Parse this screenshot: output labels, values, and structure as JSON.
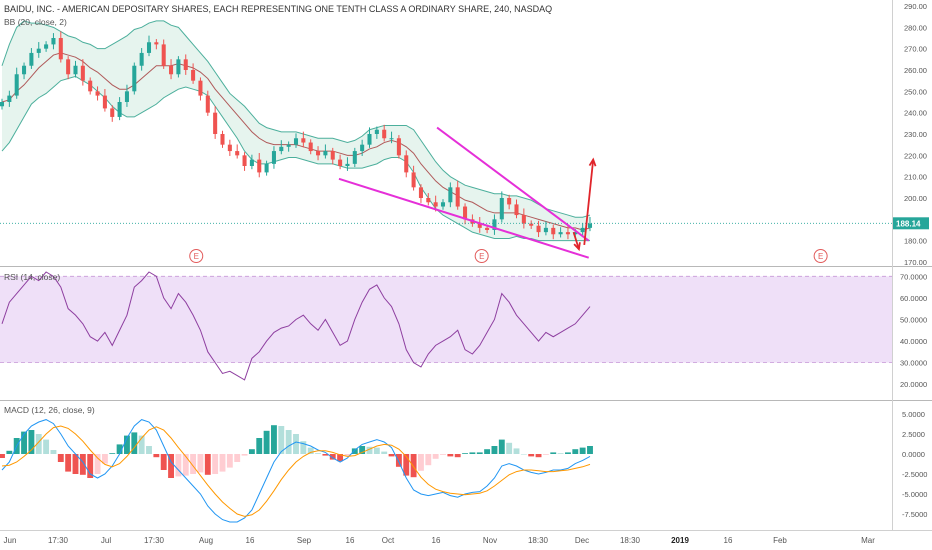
{
  "chart_data": [
    {
      "type": "candlestick",
      "title": "BAIDU, INC. - AMERICAN DEPOSITARY SHARES, EACH REPRESENTING ONE TENTH CLASS A ORDINARY SHARE, 240, NASDAQ",
      "indicator_label": "BB (20, close, 2)",
      "last_price": "188.14",
      "ylim": [
        170,
        290
      ],
      "yticks": [
        "290.00",
        "280.00",
        "270.00",
        "260.00",
        "250.00",
        "240.00",
        "230.00",
        "220.00",
        "210.00",
        "200.00",
        "190.00",
        "180.00",
        "170.00"
      ],
      "close": [
        245,
        248,
        258,
        262,
        268,
        270,
        272,
        275,
        265,
        258,
        262,
        255,
        250,
        248,
        242,
        238,
        245,
        250,
        262,
        268,
        273,
        272,
        262,
        258,
        265,
        260,
        255,
        248,
        240,
        230,
        225,
        222,
        220,
        215,
        218,
        212,
        216,
        222,
        224,
        225,
        228,
        226,
        222,
        220,
        222,
        218,
        215,
        216,
        222,
        225,
        230,
        232,
        228,
        228,
        220,
        212,
        205,
        200,
        198,
        196,
        198,
        205,
        196,
        190,
        188,
        186,
        185,
        190,
        200,
        197,
        192,
        188,
        187,
        184,
        186,
        183,
        184,
        183,
        184,
        186,
        188
      ],
      "bb_mid": [
        245,
        246,
        250,
        253,
        257,
        261,
        264,
        267,
        268,
        267,
        266,
        264,
        261,
        259,
        256,
        253,
        251,
        251,
        253,
        256,
        259,
        262,
        262,
        262,
        263,
        262,
        261,
        259,
        256,
        251,
        247,
        243,
        239,
        235,
        231,
        228,
        226,
        225,
        225,
        225,
        225,
        224,
        223,
        222,
        222,
        222,
        221,
        220,
        220,
        221,
        223,
        224,
        226,
        227,
        226,
        224,
        221,
        216,
        212,
        208,
        205,
        203,
        201,
        199,
        198,
        196,
        194,
        193,
        193,
        193,
        193,
        192,
        191,
        190,
        189,
        188,
        187,
        186,
        186,
        185,
        186
      ],
      "bb_upper": [
        262,
        272,
        280,
        283,
        282,
        282,
        281,
        280,
        278,
        276,
        275,
        273,
        272,
        270,
        270,
        272,
        274,
        276,
        279,
        280,
        282,
        283,
        283,
        281,
        280,
        276,
        272,
        268,
        264,
        259,
        254,
        249,
        246,
        243,
        239,
        235,
        233,
        232,
        231,
        231,
        231,
        230,
        229,
        228,
        228,
        228,
        227,
        226,
        227,
        229,
        232,
        233,
        234,
        234,
        234,
        234,
        232,
        227,
        222,
        217,
        213,
        210,
        208,
        206,
        205,
        204,
        203,
        202,
        202,
        201,
        201,
        200,
        199,
        197,
        195,
        194,
        193,
        192,
        191,
        191,
        192
      ],
      "bb_lower": [
        222,
        226,
        232,
        238,
        244,
        247,
        249,
        252,
        255,
        256,
        257,
        255,
        253,
        250,
        247,
        243,
        240,
        238,
        238,
        240,
        242,
        244,
        247,
        249,
        251,
        252,
        251,
        250,
        248,
        243,
        238,
        233,
        228,
        222,
        218,
        216,
        216,
        217,
        218,
        219,
        219,
        218,
        217,
        216,
        216,
        216,
        215,
        214,
        214,
        214,
        215,
        216,
        218,
        219,
        219,
        217,
        212,
        205,
        200,
        195,
        192,
        190,
        188,
        186,
        184,
        183,
        182,
        181,
        181,
        181,
        182,
        181,
        181,
        180,
        180,
        180,
        180,
        180,
        180,
        180,
        180
      ],
      "trendlines": [
        {
          "from": [
            0.49,
            233
          ],
          "to": [
            0.66,
            180
          ]
        },
        {
          "from": [
            0.38,
            209
          ],
          "to": [
            0.66,
            172
          ]
        }
      ],
      "projection_arrows": [
        {
          "from": [
            0.655,
            178
          ],
          "to": [
            0.665,
            218
          ],
          "color": "#e0252b"
        },
        {
          "from": [
            0.643,
            184
          ],
          "to": [
            0.649,
            176
          ],
          "color": "#e0252b"
        }
      ],
      "earnings_markers": [
        "E",
        "E",
        "E"
      ],
      "colors": {
        "up": "#26a69a",
        "down": "#ef5350",
        "bb_line": "#4caf9c",
        "bb_fill": "#e6f4ee",
        "mid": "#b05a5a",
        "trend": "#e52fd8",
        "last_price_bg": "#26a69a"
      }
    },
    {
      "type": "line",
      "title": "RSI (14, close)",
      "ylim": [
        15,
        72
      ],
      "yticks": [
        "70.0000",
        "60.0000",
        "50.0000",
        "40.0000",
        "30.0000",
        "20.0000"
      ],
      "band": [
        30,
        70
      ],
      "values": [
        48,
        58,
        62,
        66,
        70,
        68,
        72,
        70,
        65,
        55,
        52,
        48,
        42,
        40,
        44,
        38,
        45,
        52,
        65,
        68,
        72,
        70,
        60,
        55,
        62,
        58,
        52,
        45,
        35,
        30,
        25,
        26,
        24,
        22,
        32,
        35,
        40,
        44,
        46,
        47,
        50,
        52,
        48,
        45,
        50,
        44,
        38,
        40,
        50,
        58,
        64,
        66,
        60,
        56,
        48,
        36,
        30,
        28,
        34,
        38,
        40,
        42,
        45,
        36,
        34,
        38,
        44,
        50,
        62,
        58,
        52,
        48,
        44,
        40,
        44,
        42,
        44,
        46,
        48,
        52,
        56
      ],
      "colors": {
        "line": "#8e3fa0",
        "band_fill": "#efe0f8",
        "band_edge": "#c99ad8"
      }
    },
    {
      "type": "line_histogram",
      "title": "MACD (12, 26, close, 9)",
      "ylim": [
        -9,
        6
      ],
      "yticks": [
        "5.0000",
        "2.5000",
        "0.0000",
        "-2.5000",
        "-5.0000",
        "-7.5000"
      ],
      "macd": [
        -2,
        -1,
        1,
        2.5,
        3.5,
        4,
        4.3,
        3.8,
        2.5,
        1,
        0,
        -1,
        -2.5,
        -3,
        -2.5,
        -1.5,
        0,
        2,
        3.5,
        4.3,
        4,
        3,
        1,
        -1,
        -2,
        -3,
        -4,
        -5,
        -6.5,
        -7.5,
        -8.2,
        -8.5,
        -8.5,
        -8,
        -7,
        -5,
        -3,
        -1,
        0.3,
        1,
        1.5,
        1.3,
        1,
        0.5,
        0.2,
        -0.5,
        -1,
        -0.5,
        0.5,
        1.2,
        1.5,
        1.8,
        1.5,
        0.8,
        -1,
        -3,
        -4.5,
        -5,
        -5.2,
        -5,
        -4.8,
        -5.2,
        -5.4,
        -5,
        -4.8,
        -4.7,
        -4,
        -3,
        -1.5,
        -1.2,
        -1.5,
        -2,
        -2.3,
        -2.5,
        -2.3,
        -2,
        -2,
        -1.8,
        -1.2,
        -0.8,
        -0.3
      ],
      "signal": [
        -1.5,
        -1.4,
        -1,
        -0.3,
        0.5,
        1.5,
        2.5,
        3.3,
        3.5,
        3.2,
        2.5,
        1.6,
        0.5,
        -0.5,
        -1.3,
        -1.6,
        -1.2,
        -0.3,
        0.8,
        2,
        3,
        3.4,
        3,
        2,
        0.8,
        -0.3,
        -1.5,
        -2.7,
        -3.9,
        -5,
        -6,
        -6.8,
        -7.5,
        -7.8,
        -7.6,
        -7,
        -5.9,
        -4.6,
        -3.2,
        -2,
        -1,
        -0.3,
        0.2,
        0.4,
        0.4,
        0.2,
        -0.1,
        -0.3,
        -0.2,
        0.2,
        0.6,
        1,
        1.2,
        1.1,
        0.6,
        -0.3,
        -1.6,
        -2.9,
        -3.8,
        -4.4,
        -4.7,
        -4.9,
        -5,
        -5.1,
        -5,
        -4.9,
        -4.6,
        -4,
        -3.3,
        -2.6,
        -2.2,
        -2,
        -2,
        -2.1,
        -2.2,
        -2.2,
        -2.1,
        -2,
        -1.8,
        -1.6,
        -1.3
      ],
      "colors": {
        "macd": "#2196f3",
        "signal": "#ff9800",
        "hist_pos_strong": "#26a69a",
        "hist_pos_weak": "#b2dfdb",
        "hist_neg_strong": "#ef5350",
        "hist_neg_weak": "#ffcdd2"
      }
    }
  ],
  "x_axis": {
    "labels": [
      "Jun",
      "17:30",
      "Jul",
      "17:30",
      "Aug",
      "16",
      "Sep",
      "16",
      "Oct",
      "16",
      "Nov",
      "18:30",
      "Dec",
      "18:30",
      "2019",
      "16",
      "Feb",
      "Mar"
    ],
    "bold": [
      "2019"
    ]
  }
}
